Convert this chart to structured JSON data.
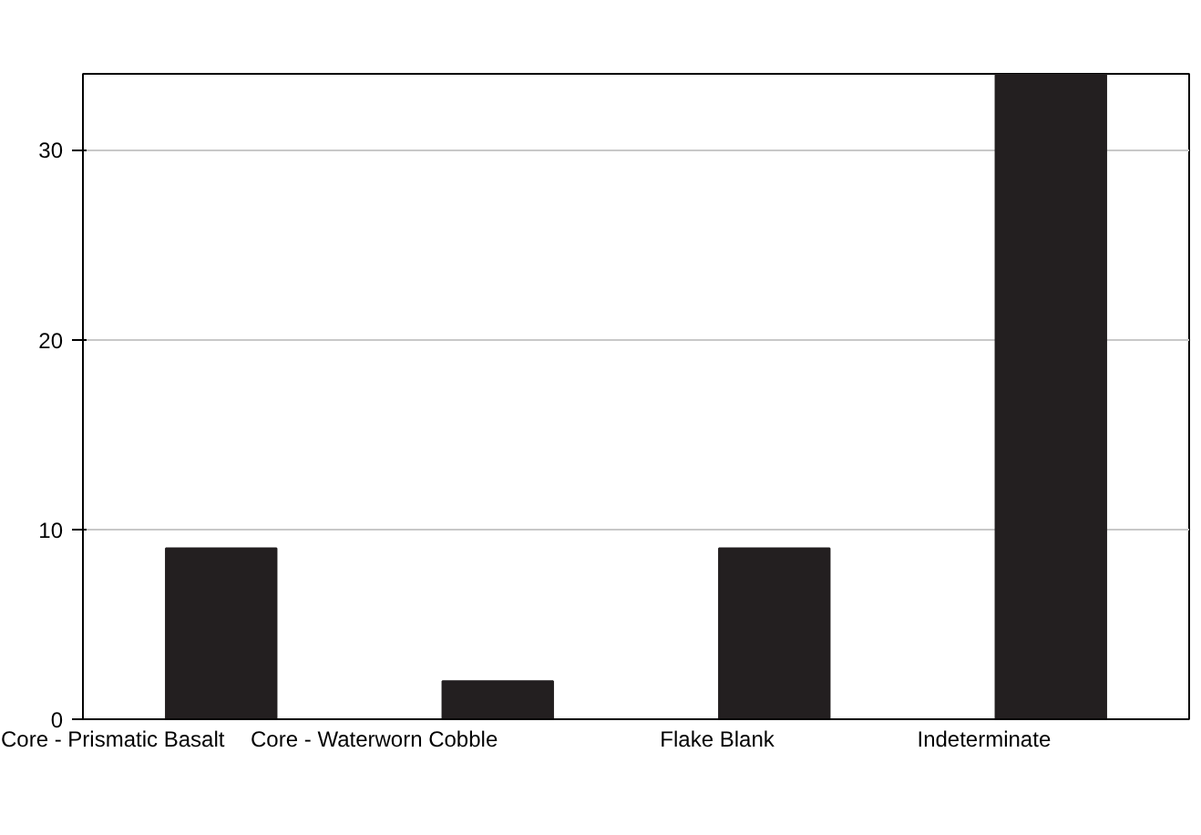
{
  "chart_data": {
    "type": "bar",
    "categories": [
      "Core - Prismatic Basalt",
      "Core - Waterworn Cobble",
      "Flake Blank",
      "Indeterminate"
    ],
    "values": [
      9,
      2,
      9,
      34
    ],
    "color": "#231f20",
    "ylim": [
      0,
      34
    ],
    "yticks": [
      0,
      10,
      20,
      30
    ],
    "grid": "y"
  }
}
